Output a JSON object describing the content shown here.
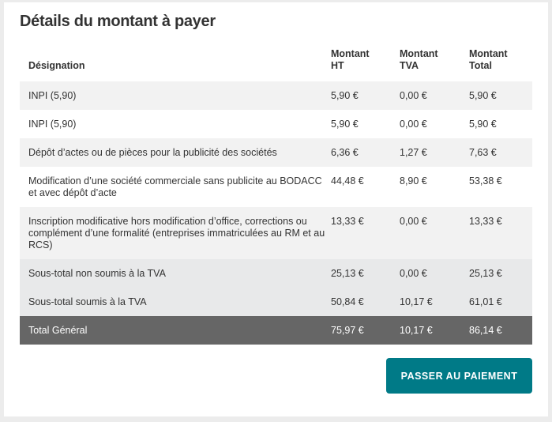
{
  "title": "Détails du montant à payer",
  "table": {
    "headers": [
      "Désignation",
      "Montant HT",
      "Montant TVA",
      "Montant Total"
    ],
    "rows": [
      {
        "designation": "INPI (5,90)",
        "ht": "5,90 €",
        "tva": "0,00 €",
        "total": "5,90 €"
      },
      {
        "designation": "INPI (5,90)",
        "ht": "5,90 €",
        "tva": "0,00 €",
        "total": "5,90 €"
      },
      {
        "designation": "Dépôt d’actes ou de pièces pour la publicité des sociétés",
        "ht": "6,36 €",
        "tva": "1,27 €",
        "total": "7,63 €"
      },
      {
        "designation": "Modification d’une société commerciale sans publicite au BODACC et avec dépôt d’acte",
        "ht": "44,48 €",
        "tva": "8,90 €",
        "total": "53,38 €"
      },
      {
        "designation": "Inscription modificative hors modification d’office, corrections ou complément d’une formalité (entreprises immatriculées au RM et au RCS)",
        "ht": "13,33 €",
        "tva": "0,00 €",
        "total": "13,33 €"
      }
    ],
    "subtotals": [
      {
        "designation": "Sous-total non soumis à la TVA",
        "ht": "25,13 €",
        "tva": "0,00 €",
        "total": "25,13 €"
      },
      {
        "designation": "Sous-total soumis à la TVA",
        "ht": "50,84 €",
        "tva": "10,17 €",
        "total": "61,01 €"
      }
    ],
    "grand_total": {
      "designation": "Total Général",
      "ht": "75,97 €",
      "tva": "10,17 €",
      "total": "86,14 €"
    }
  },
  "pay_button": "PASSER AU PAIEMENT",
  "colors": {
    "accent": "#007a87",
    "total_row": "#666666"
  }
}
